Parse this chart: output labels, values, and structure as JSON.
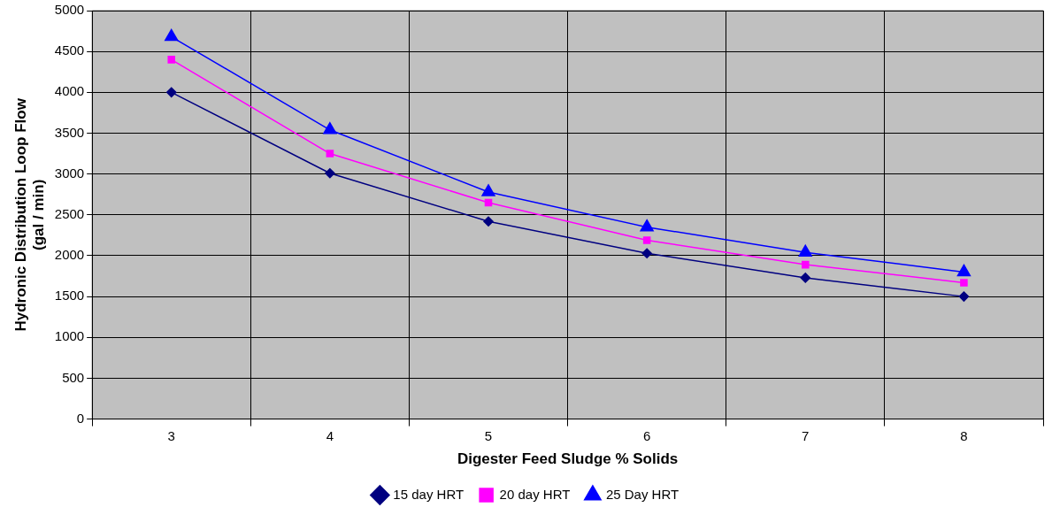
{
  "chart_data": {
    "type": "line",
    "xlabel": "Digester Feed Sludge % Solids",
    "ylabel": "Hydronic Distribution Loop Flow\n(gal / min)",
    "categories": [
      "3",
      "4",
      "5",
      "6",
      "7",
      "8"
    ],
    "series": [
      {
        "name": "15 day HRT",
        "color": "#000080",
        "marker": "diamond",
        "values": [
          4000,
          3010,
          2420,
          2030,
          1730,
          1500
        ]
      },
      {
        "name": "20 day HRT",
        "color": "#ff00ff",
        "marker": "square",
        "values": [
          4400,
          3250,
          2650,
          2190,
          1890,
          1670
        ]
      },
      {
        "name": "25 Day HRT",
        "color": "#0000ff",
        "marker": "triangle",
        "values": [
          4680,
          3540,
          2780,
          2350,
          2040,
          1800
        ]
      }
    ],
    "ylim": [
      0,
      5000
    ],
    "yticks": [
      0,
      500,
      1000,
      1500,
      2000,
      2500,
      3000,
      3500,
      4000,
      4500,
      5000
    ],
    "grid": true,
    "legend": "bottom",
    "line_style": "solid"
  }
}
